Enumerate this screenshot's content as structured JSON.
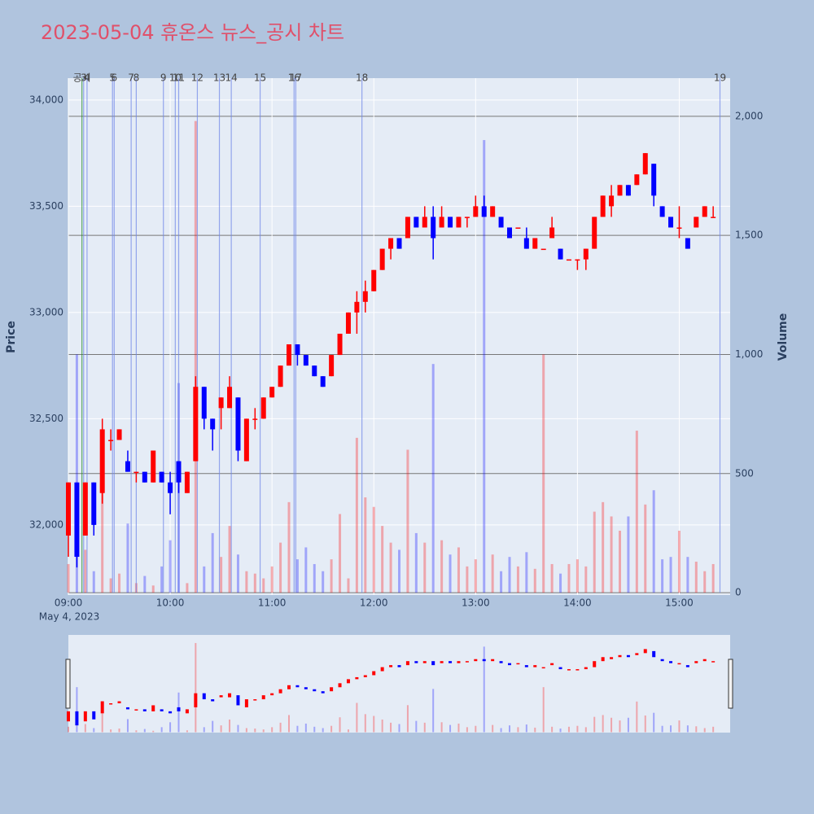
{
  "chart_data": {
    "type": "candlestick",
    "title": "2023-05-04 휴온스 뉴스_공시 차트",
    "y_label": "Price",
    "y2_label": "Volume",
    "x_date_label": "May 4, 2023",
    "xlim": [
      "09:00",
      "15:30"
    ],
    "xticks": [
      "09:00",
      "10:00",
      "11:00",
      "12:00",
      "13:00",
      "14:00",
      "15:00"
    ],
    "ylim": [
      31670,
      34103
    ],
    "yticks": [
      {
        "value": 32000,
        "label": "32,000"
      },
      {
        "value": 32500,
        "label": "32,500"
      },
      {
        "value": 33000,
        "label": "33,000"
      },
      {
        "value": 33500,
        "label": "33,500"
      },
      {
        "value": 34000,
        "label": "34,000"
      }
    ],
    "y2lim": [
      -10,
      2160
    ],
    "y2ticks": [
      0,
      500,
      {
        "value": 1000,
        "label": "1,000"
      },
      {
        "value": 1500,
        "label": "1,500"
      },
      {
        "value": 2000,
        "label": "2,000"
      }
    ],
    "increasing_color": "#ff0000",
    "decreasing_color": "#0000ff",
    "x": [
      "09:00",
      "09:05",
      "09:10",
      "09:15",
      "09:20",
      "09:25",
      "09:30",
      "09:35",
      "09:40",
      "09:45",
      "09:50",
      "09:55",
      "10:00",
      "10:05",
      "10:10",
      "10:15",
      "10:20",
      "10:25",
      "10:30",
      "10:35",
      "10:40",
      "10:45",
      "10:50",
      "10:55",
      "11:00",
      "11:05",
      "11:10",
      "11:15",
      "11:20",
      "11:25",
      "11:30",
      "11:35",
      "11:40",
      "11:45",
      "11:50",
      "11:55",
      "12:00",
      "12:05",
      "12:10",
      "12:15",
      "12:20",
      "12:25",
      "12:30",
      "12:35",
      "12:40",
      "12:45",
      "12:50",
      "12:55",
      "13:00",
      "13:05",
      "13:10",
      "13:15",
      "13:20",
      "13:25",
      "13:30",
      "13:35",
      "13:40",
      "13:45",
      "13:50",
      "13:55",
      "14:00",
      "14:05",
      "14:10",
      "14:15",
      "14:20",
      "14:25",
      "14:30",
      "14:35",
      "14:40",
      "14:45",
      "14:50",
      "14:55",
      "15:00",
      "15:05",
      "15:10",
      "15:15",
      "15:20"
    ],
    "open": [
      31950,
      32200,
      31950,
      32200,
      32150,
      32400,
      32400,
      32300,
      32250,
      32250,
      32200,
      32250,
      32200,
      32300,
      32150,
      32300,
      32650,
      32500,
      32550,
      32550,
      32600,
      32300,
      32500,
      32500,
      32600,
      32650,
      32750,
      32850,
      32800,
      32750,
      32700,
      32700,
      32800,
      32900,
      33000,
      33050,
      33100,
      33200,
      33300,
      33350,
      33350,
      33450,
      33400,
      33450,
      33400,
      33450,
      33400,
      33450,
      33450,
      33500,
      33450,
      33450,
      33400,
      33400,
      33350,
      33300,
      33300,
      33350,
      33300,
      33250,
      33250,
      33250,
      33300,
      33450,
      33500,
      33550,
      33600,
      33600,
      33650,
      33700,
      33500,
      33450,
      33400,
      33350,
      33400,
      33450,
      33450
    ],
    "high": [
      32200,
      32200,
      32200,
      32200,
      32500,
      32450,
      32450,
      32350,
      32250,
      32250,
      32350,
      32250,
      32250,
      32300,
      32250,
      32700,
      32650,
      32500,
      32600,
      32700,
      32600,
      32500,
      32550,
      32600,
      32650,
      32750,
      32850,
      32850,
      32800,
      32750,
      32700,
      32800,
      32900,
      33000,
      33100,
      33150,
      33200,
      33300,
      33350,
      33350,
      33450,
      33450,
      33500,
      33500,
      33500,
      33450,
      33450,
      33450,
      33550,
      33550,
      33500,
      33450,
      33400,
      33400,
      33400,
      33350,
      33300,
      33450,
      33300,
      33250,
      33250,
      33300,
      33450,
      33550,
      33600,
      33600,
      33600,
      33650,
      33750,
      33700,
      33500,
      33450,
      33500,
      33350,
      33450,
      33500,
      33500
    ],
    "low": [
      31850,
      31800,
      31950,
      31950,
      32100,
      32350,
      32400,
      32250,
      32200,
      32200,
      32200,
      32200,
      32050,
      32150,
      32150,
      32300,
      32450,
      32350,
      32450,
      32550,
      32300,
      32300,
      32450,
      32500,
      32600,
      32650,
      32750,
      32750,
      32750,
      32700,
      32650,
      32700,
      32800,
      32900,
      32900,
      33000,
      33100,
      33200,
      33250,
      33300,
      33350,
      33400,
      33400,
      33250,
      33400,
      33400,
      33400,
      33400,
      33450,
      33450,
      33450,
      33400,
      33350,
      33400,
      33300,
      33300,
      33300,
      33350,
      33250,
      33250,
      33200,
      33200,
      33300,
      33450,
      33450,
      33550,
      33550,
      33600,
      33650,
      33500,
      33450,
      33400,
      33350,
      33300,
      33400,
      33450,
      33450
    ],
    "close": [
      32200,
      31850,
      32200,
      32000,
      32450,
      32400,
      32450,
      32250,
      32250,
      32200,
      32350,
      32200,
      32150,
      32200,
      32250,
      32650,
      32500,
      32450,
      32600,
      32650,
      32350,
      32500,
      32500,
      32600,
      32650,
      32750,
      32850,
      32800,
      32750,
      32700,
      32650,
      32800,
      32900,
      33000,
      33050,
      33100,
      33200,
      33300,
      33350,
      33300,
      33450,
      33400,
      33450,
      33350,
      33450,
      33400,
      33450,
      33450,
      33500,
      33450,
      33500,
      33400,
      33350,
      33400,
      33300,
      33350,
      33300,
      33400,
      33250,
      33250,
      33250,
      33300,
      33450,
      33550,
      33550,
      33600,
      33550,
      33650,
      33750,
      33550,
      33450,
      33400,
      33400,
      33300,
      33450,
      33500,
      33450
    ],
    "volume": [
      120,
      1000,
      180,
      90,
      420,
      60,
      80,
      290,
      40,
      70,
      30,
      110,
      220,
      880,
      40,
      1980,
      110,
      250,
      150,
      280,
      160,
      90,
      80,
      60,
      110,
      210,
      380,
      140,
      190,
      120,
      90,
      140,
      330,
      60,
      650,
      400,
      360,
      280,
      210,
      180,
      600,
      250,
      210,
      960,
      220,
      160,
      190,
      110,
      140,
      1900,
      160,
      90,
      150,
      110,
      170,
      100,
      1000,
      120,
      80,
      120,
      140,
      110,
      340,
      380,
      320,
      260,
      320,
      680,
      370,
      430,
      140,
      150,
      260,
      150,
      130,
      90,
      120
    ],
    "markers": [
      {
        "x": "09:08",
        "label": "공시",
        "color": "#228b22"
      },
      {
        "x": "09:09",
        "label": "3",
        "color": "#6f86e8"
      },
      {
        "x": "09:11",
        "label": "4",
        "color": "#6f86e8"
      },
      {
        "x": "09:26",
        "label": "5",
        "color": "#6f86e8"
      },
      {
        "x": "09:27",
        "label": "6",
        "color": "#6f86e8"
      },
      {
        "x": "09:37",
        "label": "7",
        "color": "#6f86e8"
      },
      {
        "x": "09:40",
        "label": "8",
        "color": "#6f86e8"
      },
      {
        "x": "09:56",
        "label": "9",
        "color": "#6f86e8"
      },
      {
        "x": "10:03",
        "label": "10",
        "color": "#6f86e8"
      },
      {
        "x": "10:05",
        "label": "11",
        "color": "#6f86e8"
      },
      {
        "x": "10:16",
        "label": "12",
        "color": "#6f86e8"
      },
      {
        "x": "10:29",
        "label": "13",
        "color": "#6f86e8"
      },
      {
        "x": "10:36",
        "label": "14",
        "color": "#6f86e8"
      },
      {
        "x": "10:53",
        "label": "15",
        "color": "#6f86e8"
      },
      {
        "x": "11:13",
        "label": "16",
        "color": "#6f86e8"
      },
      {
        "x": "11:14",
        "label": "17",
        "color": "#6f86e8"
      },
      {
        "x": "11:53",
        "label": "18",
        "color": "#6f86e8"
      },
      {
        "x": "15:24",
        "label": "19",
        "color": "#6f86e8"
      }
    ]
  }
}
